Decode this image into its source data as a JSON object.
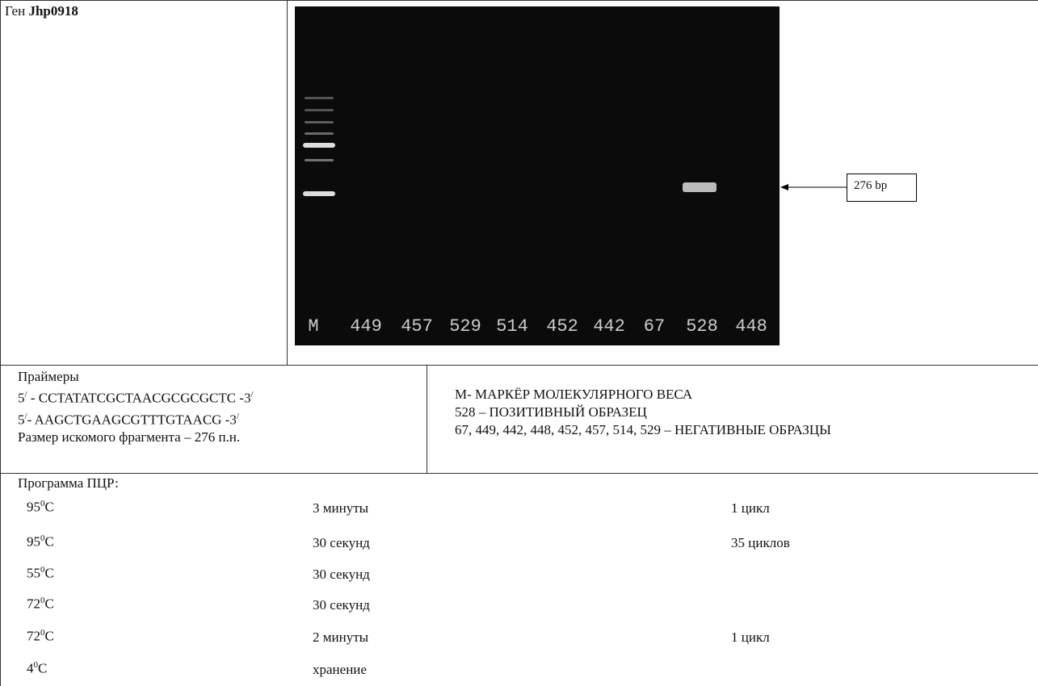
{
  "header": {
    "prefix": "Ген",
    "gene": "Jhp0918"
  },
  "gel": {
    "lanes": [
      "M",
      "449",
      "457",
      "529",
      "514",
      "452",
      "442",
      "67",
      "528",
      "448"
    ],
    "annotation": "276 bp"
  },
  "primers": {
    "title": "Праймеры",
    "list": [
      {
        "start": "5",
        "prime": "/",
        "sequence": " - CCTATATCGCTAACGCGCGCTC -3",
        "end_prime": "/"
      },
      {
        "start": "5",
        "prime": "/",
        "sequence": "- AAGCTGAAGCGTTTGTAACG -3",
        "end_prime": "/"
      }
    ],
    "fragment_size": "Размер искомого фрагмента – 276 п.н."
  },
  "legend": [
    "М- МАРКЁР МОЛЕКУЛЯРНОГО ВЕСА",
    "528 – ПОЗИТИВНЫЙ ОБРАЗЕЦ",
    "67, 449, 442, 448, 452, 457, 514, 529 – НЕГАТИВНЫЕ ОБРАЗЦЫ"
  ],
  "program": {
    "title": "Программа ПЦР:",
    "rows": [
      {
        "temp": "95",
        "degree": "0",
        "unit": "C",
        "time": "3 минуты",
        "cycles": "1 цикл"
      },
      {
        "temp": "95",
        "degree": "0",
        "unit": "C",
        "time": "30 секунд",
        "cycles": "35 циклов"
      },
      {
        "temp": "55",
        "degree": "0",
        "unit": "C",
        "time": "30 секунд"
      },
      {
        "temp": "72",
        "degree": "0",
        "unit": "C",
        "time": "30 секунд"
      },
      {
        "temp": "72",
        "degree": "0",
        "unit": "C",
        "time": "2 минуты",
        "cycles": "1 цикл"
      },
      {
        "temp": "4",
        "degree": "0",
        "unit": "C",
        "time": "хранение"
      }
    ]
  }
}
